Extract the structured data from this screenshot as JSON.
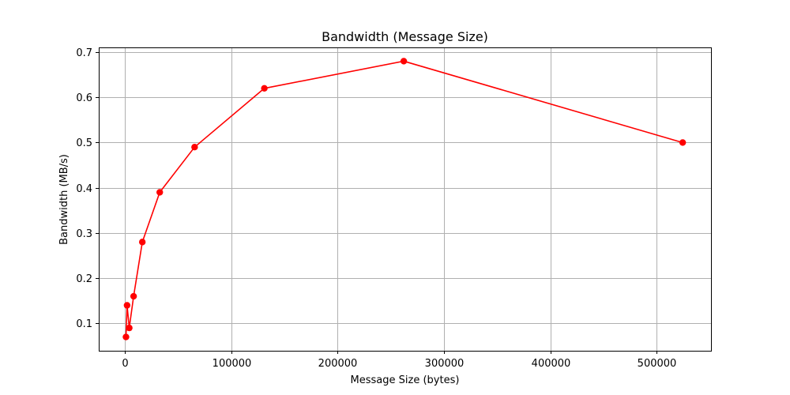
{
  "chart_data": {
    "type": "line",
    "title": "Bandwidth (Message Size)",
    "xlabel": "Message Size (bytes)",
    "ylabel": "Bandwidth (MB/s)",
    "xlim": [
      -24576,
      550912
    ],
    "ylim": [
      0.0395,
      0.7105
    ],
    "xticks": [
      0,
      100000,
      200000,
      300000,
      400000,
      500000
    ],
    "xtick_labels": [
      "0",
      "100000",
      "200000",
      "300000",
      "400000",
      "500000"
    ],
    "yticks": [
      0.1,
      0.2,
      0.3,
      0.4,
      0.5,
      0.6,
      0.7
    ],
    "ytick_labels": [
      "0.1",
      "0.2",
      "0.3",
      "0.4",
      "0.5",
      "0.6",
      "0.7"
    ],
    "grid": true,
    "series": [
      {
        "color": "#ff0000",
        "marker": "circle",
        "x": [
          1024,
          2048,
          4096,
          8192,
          16384,
          32768,
          65536,
          131072,
          262144,
          524288
        ],
        "y": [
          0.07,
          0.14,
          0.09,
          0.16,
          0.28,
          0.39,
          0.49,
          0.62,
          0.68,
          0.5
        ]
      }
    ]
  }
}
